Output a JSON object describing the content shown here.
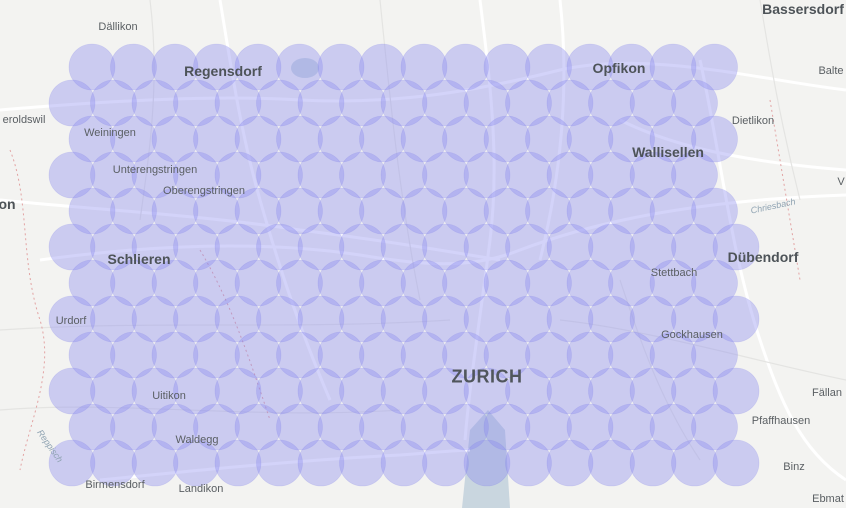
{
  "map": {
    "overlay_color": "#8c8cf0",
    "overlay_stroke": "#7a7ae6",
    "background_color": "#f3f3f1",
    "road_color": "#ffffff",
    "water_color": "#c9d6df",
    "labels": {
      "dallikon": "Dällikon",
      "bassersdorf": "Bassersdorf",
      "regensdorf": "Regensdorf",
      "opfikon": "Opfikon",
      "balte": "Balte",
      "eroldswil": "eroldswil",
      "weiningen": "Weiningen",
      "dietlikon": "Dietlikon",
      "wallisellen": "Wallisellen",
      "unterengstringen": "Unterengstringen",
      "oberengstringen": "Oberengstringen",
      "on": "on",
      "chriesbach": "Chriesbach",
      "v": "V",
      "schlieren": "Schlieren",
      "duebendorf": "Dübendorf",
      "stettbach": "Stettbach",
      "urdorf": "Urdorf",
      "gockhausen": "Gockhausen",
      "zurich": "ZURICH",
      "uitikon": "Uitikon",
      "fallan": "Fällan",
      "pfaffhausen": "Pfaffhausen",
      "reppisch": "Reppisch",
      "waldegg": "Waldegg",
      "binz": "Binz",
      "birmensdorf": "Birmensdorf",
      "landikon": "Landikon",
      "ebmat": "Ebmat"
    }
  }
}
